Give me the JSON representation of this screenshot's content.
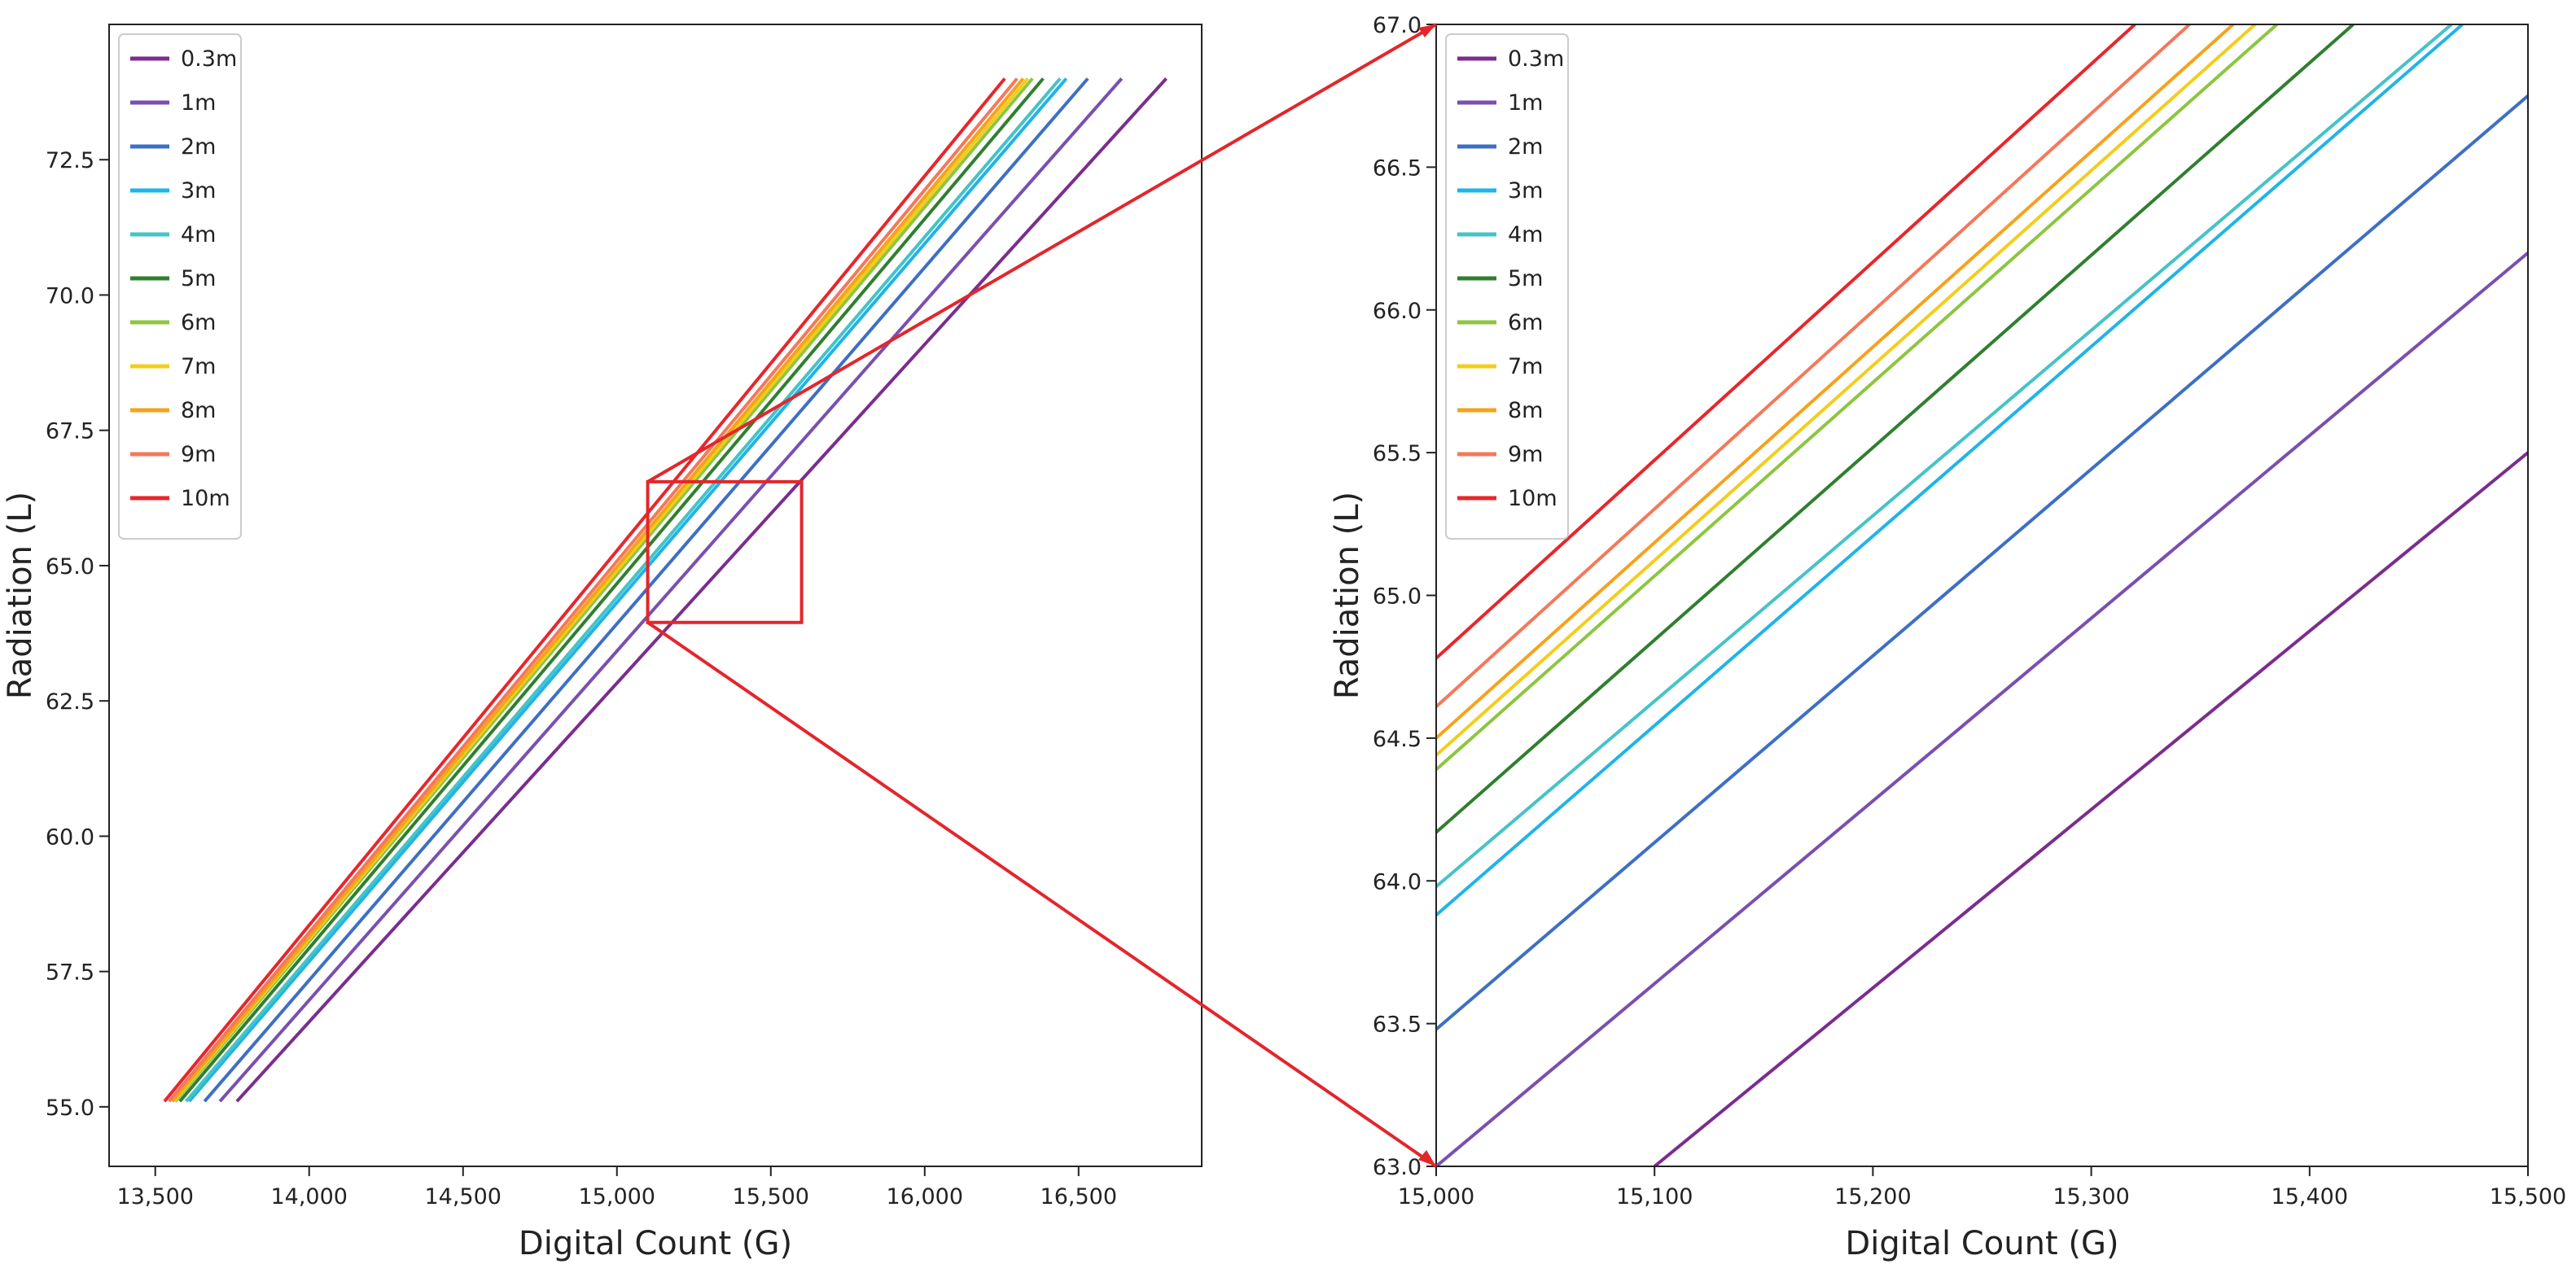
{
  "chart_data": [
    {
      "type": "line",
      "title": "",
      "xlabel": "Digital Count (G)",
      "ylabel": "Radiation (L)",
      "xlim": [
        13350,
        16900
      ],
      "ylim": [
        53.9,
        75.0
      ],
      "xticks": [
        13500,
        14000,
        14500,
        15000,
        15500,
        16000,
        16500
      ],
      "xtick_labels": [
        "13,500",
        "14,000",
        "14,500",
        "15,000",
        "15,500",
        "16,000",
        "16,500"
      ],
      "yticks": [
        55.0,
        57.5,
        60.0,
        62.5,
        65.0,
        67.5,
        70.0,
        72.5
      ],
      "ytick_labels": [
        "55.0",
        "57.5",
        "60.0",
        "62.5",
        "65.0",
        "67.5",
        "70.0",
        "72.5"
      ],
      "grid": false,
      "legend_position": "top-left",
      "series": [
        {
          "name": "0.3m",
          "x": [
            13765,
            16785
          ],
          "y": [
            55.1,
            74.0
          ]
        },
        {
          "name": "1m",
          "x": [
            13710,
            16640
          ],
          "y": [
            55.1,
            74.0
          ]
        },
        {
          "name": "2m",
          "x": [
            13660,
            16530
          ],
          "y": [
            55.1,
            74.0
          ]
        },
        {
          "name": "3m",
          "x": [
            13610,
            16460
          ],
          "y": [
            55.1,
            74.0
          ]
        },
        {
          "name": "4m",
          "x": [
            13600,
            16440
          ],
          "y": [
            55.1,
            74.0
          ]
        },
        {
          "name": "5m",
          "x": [
            13580,
            16385
          ],
          "y": [
            55.1,
            74.0
          ]
        },
        {
          "name": "6m",
          "x": [
            13565,
            16350
          ],
          "y": [
            55.1,
            74.0
          ]
        },
        {
          "name": "7m",
          "x": [
            13560,
            16335
          ],
          "y": [
            55.1,
            74.0
          ]
        },
        {
          "name": "8m",
          "x": [
            13555,
            16320
          ],
          "y": [
            55.1,
            74.0
          ]
        },
        {
          "name": "9m",
          "x": [
            13545,
            16300
          ],
          "y": [
            55.1,
            74.0
          ]
        },
        {
          "name": "10m",
          "x": [
            13530,
            16260
          ],
          "y": [
            55.1,
            74.0
          ]
        }
      ],
      "annotations": [
        {
          "type": "zoom-box",
          "x_range": [
            15100,
            15600
          ],
          "y_range": [
            63.95,
            66.55
          ]
        }
      ]
    },
    {
      "type": "line",
      "title": "",
      "xlabel": "Digital Count (G)",
      "ylabel": "Radiation (L)",
      "xlim": [
        15000,
        15500
      ],
      "ylim": [
        63.0,
        67.0
      ],
      "xticks": [
        15000,
        15100,
        15200,
        15300,
        15400,
        15500
      ],
      "xtick_labels": [
        "15,000",
        "15,100",
        "15,200",
        "15,300",
        "15,400",
        "15,500"
      ],
      "yticks": [
        63.0,
        63.5,
        64.0,
        64.5,
        65.0,
        65.5,
        66.0,
        66.5,
        67.0
      ],
      "ytick_labels": [
        "63.0",
        "63.5",
        "64.0",
        "64.5",
        "65.0",
        "65.5",
        "66.0",
        "66.5",
        "67.0"
      ],
      "grid": false,
      "legend_position": "top-left",
      "series": [
        {
          "name": "0.3m",
          "x": [
            15100,
            15500
          ],
          "y": [
            63.0,
            65.5
          ]
        },
        {
          "name": "1m",
          "x": [
            15000,
            15500
          ],
          "y": [
            63.0,
            66.2
          ]
        },
        {
          "name": "2m",
          "x": [
            15000,
            15500
          ],
          "y": [
            63.48,
            66.75
          ]
        },
        {
          "name": "3m",
          "x": [
            15000,
            15470
          ],
          "y": [
            63.88,
            67.0
          ]
        },
        {
          "name": "4m",
          "x": [
            15000,
            15465
          ],
          "y": [
            63.98,
            67.0
          ]
        },
        {
          "name": "5m",
          "x": [
            15000,
            15420
          ],
          "y": [
            64.17,
            67.0
          ]
        },
        {
          "name": "6m",
          "x": [
            15000,
            15385
          ],
          "y": [
            64.39,
            67.0
          ]
        },
        {
          "name": "7m",
          "x": [
            15000,
            15375
          ],
          "y": [
            64.44,
            67.0
          ]
        },
        {
          "name": "8m",
          "x": [
            15000,
            15365
          ],
          "y": [
            64.5,
            67.0
          ]
        },
        {
          "name": "9m",
          "x": [
            15000,
            15345
          ],
          "y": [
            64.61,
            67.0
          ]
        },
        {
          "name": "10m",
          "x": [
            15000,
            15320
          ],
          "y": [
            64.78,
            67.0
          ]
        }
      ]
    }
  ],
  "colors": {
    "0.3m": "#7b2d8e",
    "1m": "#7a4fb0",
    "2m": "#3d6fc4",
    "3m": "#1fb4e8",
    "4m": "#45c3c8",
    "5m": "#2f7f2f",
    "6m": "#8cc63f",
    "7m": "#f3cd1c",
    "8m": "#f7a21b",
    "9m": "#f5785a",
    "10m": "#e8262b",
    "zoom": "#e3262c"
  }
}
